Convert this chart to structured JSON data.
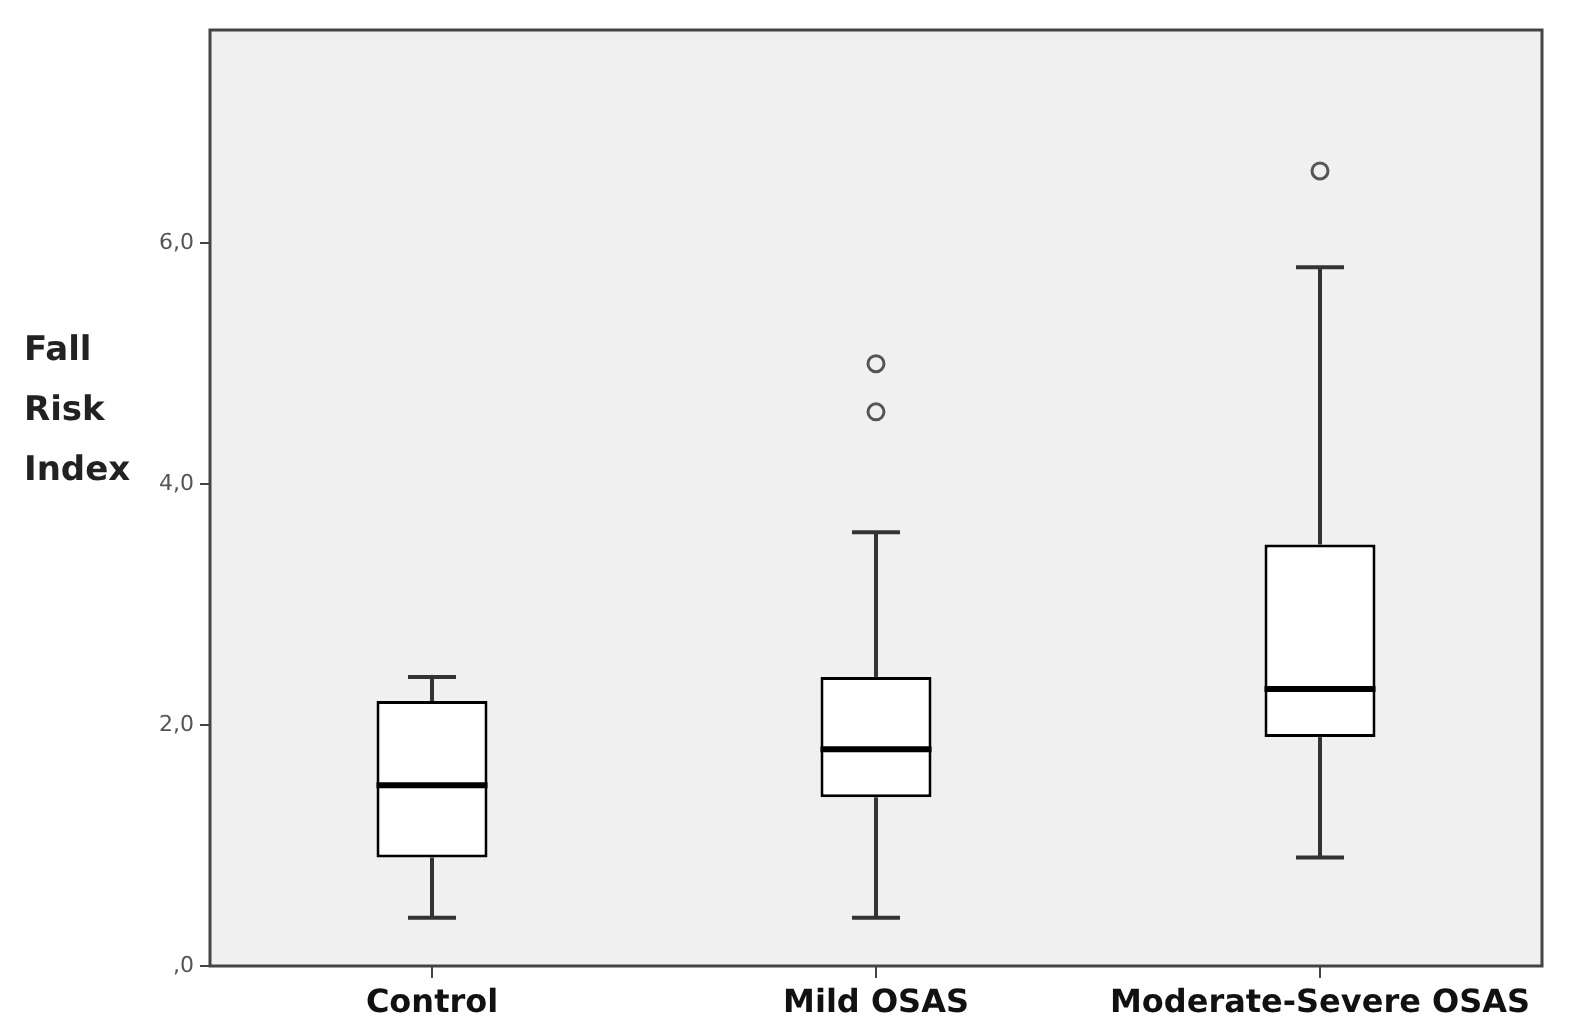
{
  "chart_data": {
    "type": "box",
    "ylabel": "Fall Risk Index",
    "categories": [
      "Control",
      "Mild OSAS",
      "Moderate-Severe OSAS"
    ],
    "boxes": [
      {
        "low": 0.4,
        "q1": 0.9,
        "median": 1.5,
        "q3": 2.2,
        "high": 2.4
      },
      {
        "low": 0.4,
        "q1": 1.4,
        "median": 1.8,
        "q3": 2.4,
        "high": 3.6,
        "outliers": [
          5.0,
          4.6
        ]
      },
      {
        "low": 0.9,
        "q1": 1.9,
        "median": 2.3,
        "q3": 3.5,
        "high": 5.8,
        "outliers": [
          6.6
        ]
      }
    ],
    "ylim": [
      0,
      7.77
    ],
    "yticks": [
      {
        "value": 0,
        "label": ",0"
      },
      {
        "value": 2,
        "label": "2,0"
      },
      {
        "value": 4,
        "label": "4,0"
      },
      {
        "value": 6,
        "label": "6,0"
      }
    ],
    "grid": false,
    "legend": false
  }
}
